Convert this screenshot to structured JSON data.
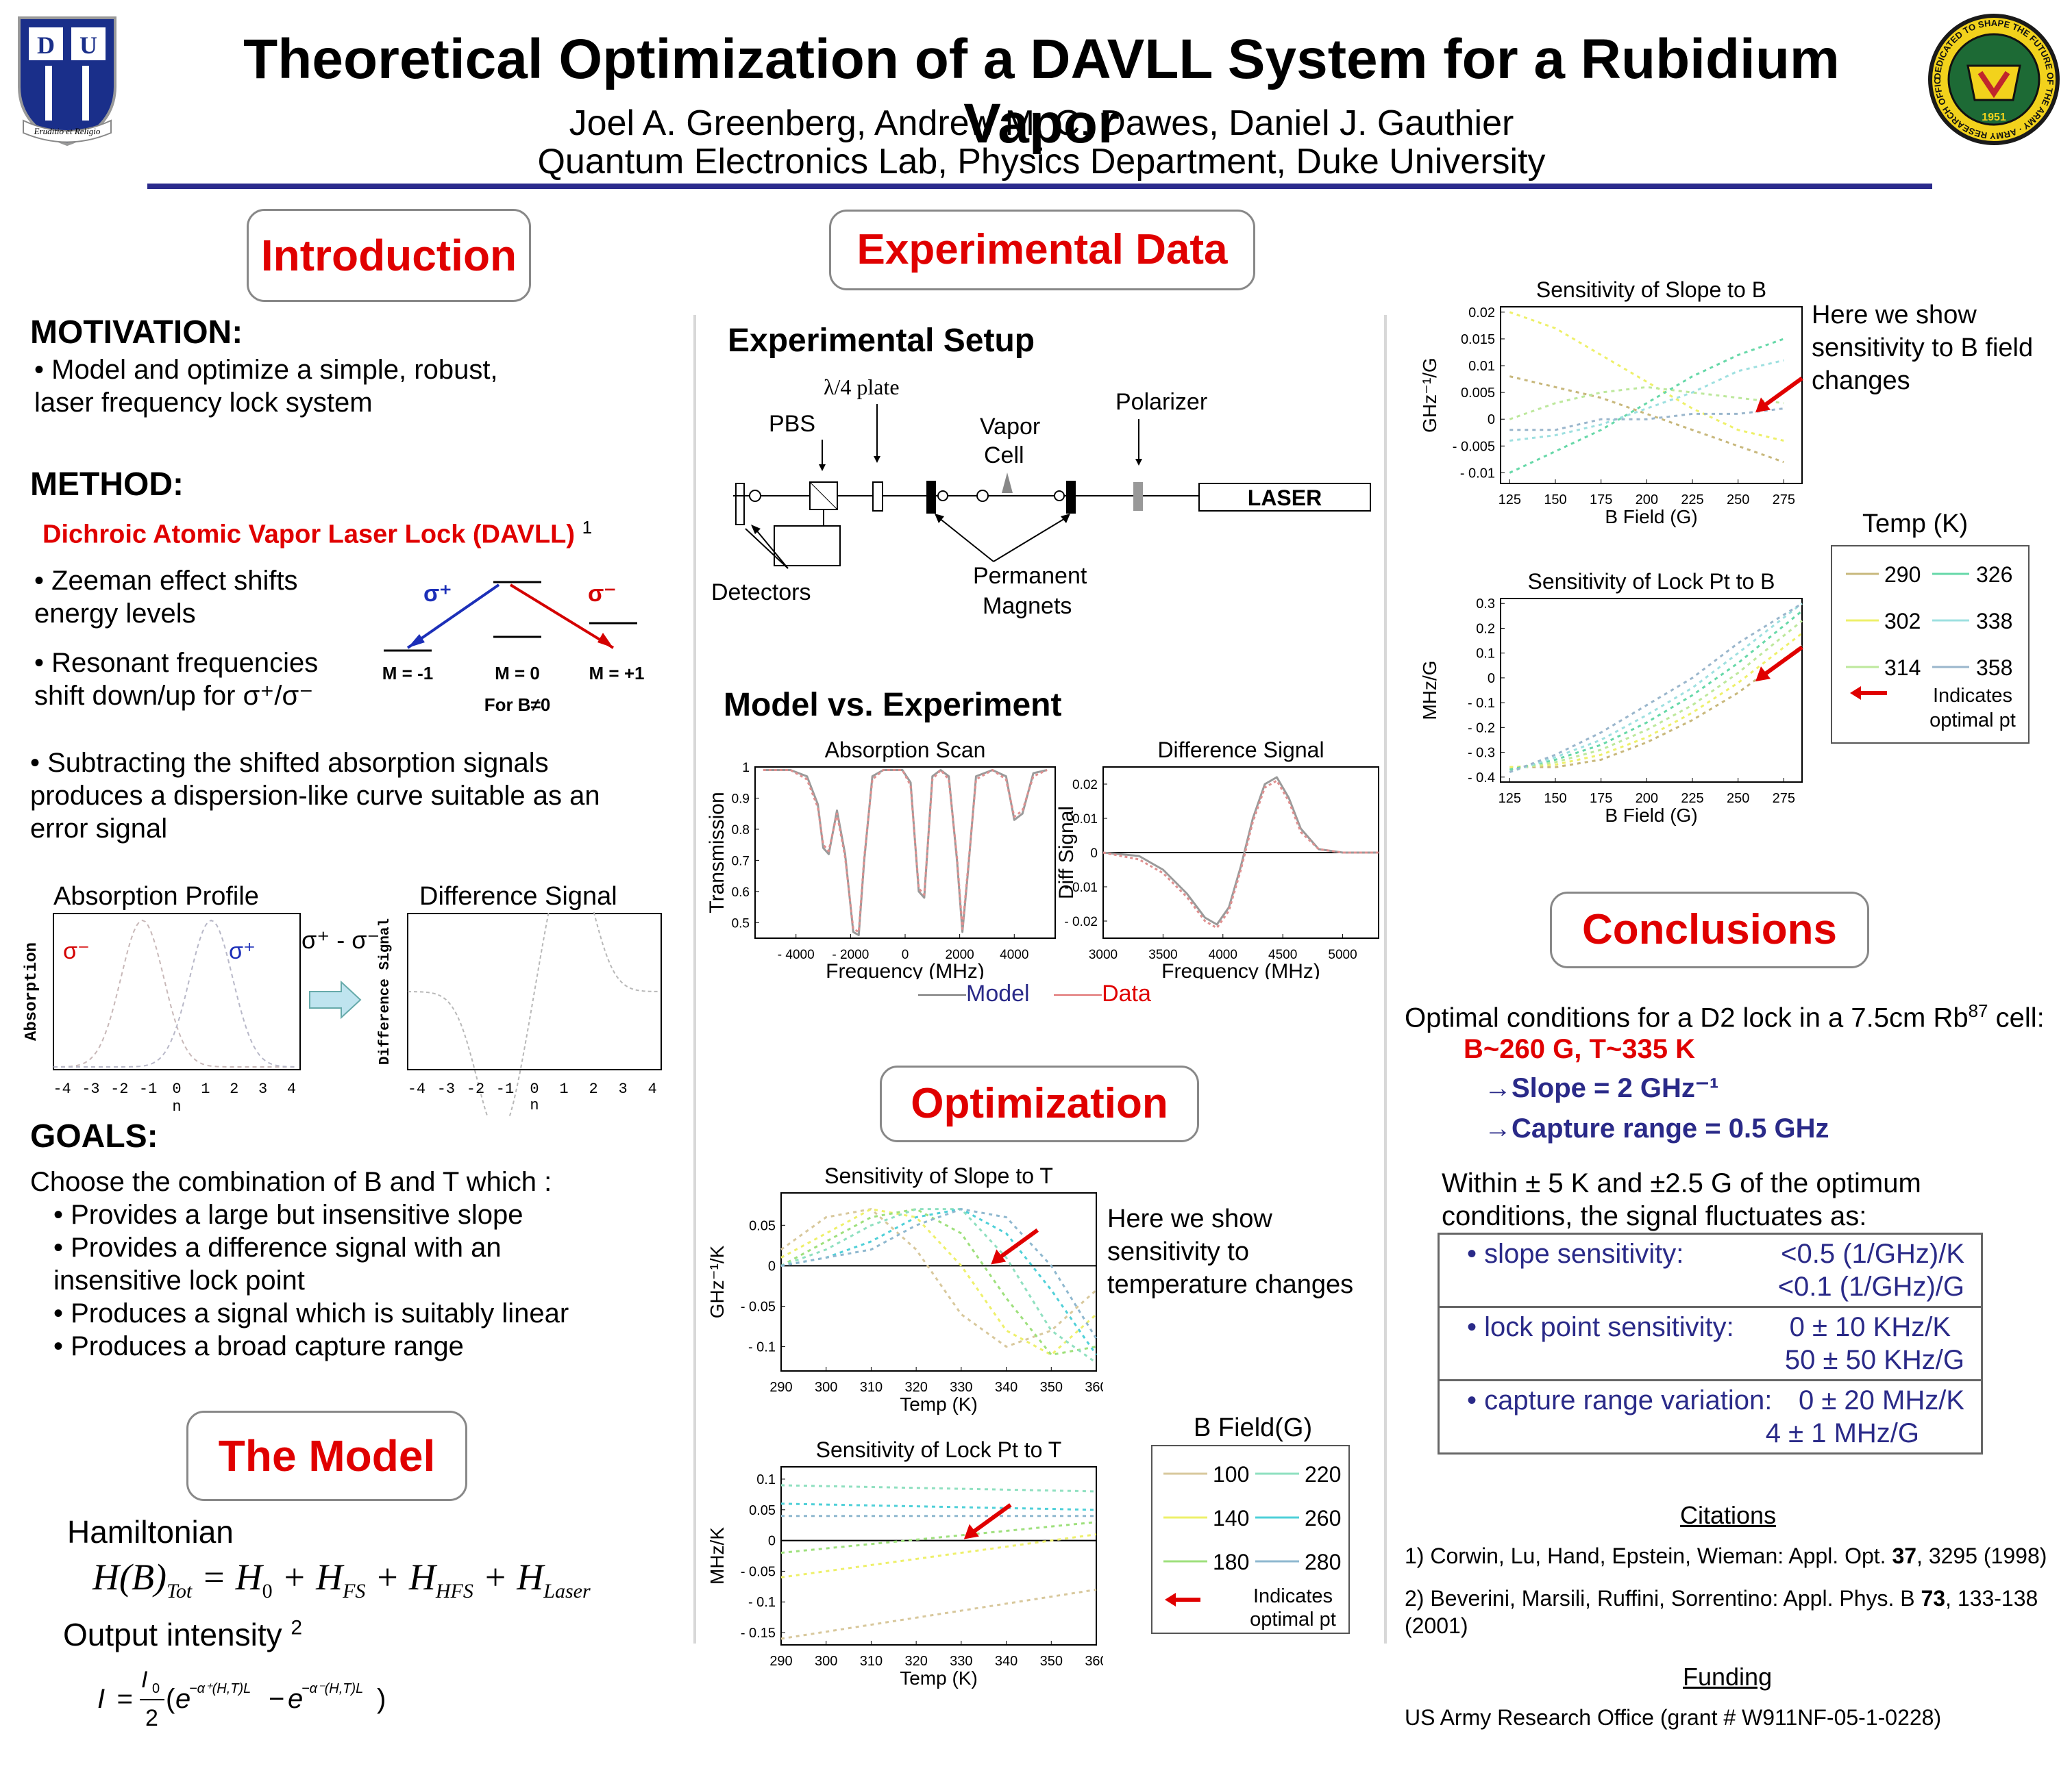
{
  "header": {
    "title": "Theoretical Optimization of a DAVLL System for a Rubidium Vapor",
    "authors": "Joel A. Greenberg, Andrew M. C. Dawes, Daniel J. Gauthier",
    "affiliation": "Quantum Electronics Lab, Physics Department, Duke University",
    "left_logo_motto": "Eruditio et Religio",
    "right_logo_ring": "DEDICATED TO SHAPE THE FUTURE OF THE ARMY · ARMY RESEARCH OFFICE",
    "right_logo_year": "1951"
  },
  "intro": {
    "heading": "Introduction",
    "motivation_title": "MOTIVATION:",
    "motivation_text": "• Model and optimize a simple, robust, laser frequency lock system",
    "method_title": "METHOD:",
    "method_name": "Dichroic Atomic Vapor Laser Lock (DAVLL)",
    "method_ref": "1",
    "bullet_zeeman": "• Zeeman effect shifts energy levels",
    "bullet_resonant": "• Resonant frequencies shift down/up for σ⁺/σ⁻",
    "bullet_subtract": "• Subtracting the shifted absorption signals produces a dispersion-like curve suitable as an error signal",
    "level_diagram": {
      "sigma_plus": "σ⁺",
      "sigma_minus": "σ⁻",
      "m_minus": "M = -1",
      "m_zero": "M = 0",
      "m_plus": "M = +1",
      "condition": "For B≠0"
    },
    "absorption_profile": {
      "title": "Absorption Profile",
      "ylabel": "Absorption",
      "sigma_minus": "σ⁻",
      "sigma_plus": "σ⁺",
      "xticks": [
        "-4",
        "-3",
        "-2",
        "-1",
        "0",
        "1",
        "2",
        "3",
        "4"
      ],
      "xlabel": "n"
    },
    "arrow_label": "σ⁺ - σ⁻",
    "difference_signal": {
      "title": "Difference Signal",
      "ylabel": "Difference Signal",
      "xticks": [
        "-4",
        "-3",
        "-2",
        "-1",
        "0",
        "1",
        "2",
        "3",
        "4"
      ],
      "xlabel": "n"
    },
    "goals_title": "GOALS:",
    "goals_intro": "Choose the combination of B and T which :",
    "goals": [
      "• Provides a large but insensitive slope",
      "• Provides a difference signal with an insensitive lock point",
      "• Produces a signal which is suitably linear",
      "• Produces a broad capture range"
    ]
  },
  "model": {
    "heading": "The Model",
    "hamiltonian_label": "Hamiltonian",
    "output_label": "Output intensity",
    "output_ref": "2"
  },
  "experimental": {
    "heading": "Experimental Data",
    "setup_title": "Experimental Setup",
    "labels": {
      "quarter_wave": "λ/4 plate",
      "pbs": "PBS",
      "vapor_cell": "Vapor Cell",
      "polarizer": "Polarizer",
      "laser": "LASER",
      "detectors": "Detectors",
      "magnets": "Permanent Magnets"
    },
    "model_vs_exp_title": "Model vs. Experiment",
    "legend_model": "Model",
    "legend_data": "Data"
  },
  "optimization": {
    "heading": "Optimization",
    "note_T": "Here we show sensitivity to temperature changes",
    "bfield_legend_title": "B Field(G)",
    "bfield_legend": [
      "100",
      "220",
      "140",
      "260",
      "180",
      "280"
    ],
    "indicates": "Indicates optimal pt"
  },
  "right": {
    "note_B": "Here we show sensitivity to B field changes",
    "temp_legend_title": "Temp (K)",
    "temp_legend": [
      "290",
      "326",
      "302",
      "338",
      "314",
      "358"
    ],
    "indicates": "Indicates optimal pt"
  },
  "conclusions": {
    "heading": "Conclusions",
    "optimal_intro": "Optimal conditions for a D2 lock in a 7.5cm Rb",
    "optimal_sup": "87",
    "optimal_suffix": " cell:",
    "optimal_BT": "B~260 G, T~335 K",
    "slope": "→Slope = 2 GHz⁻¹",
    "capture": "→Capture range = 0.5 GHz",
    "within": "Within ± 5 K and ±2.5 G of the optimum conditions, the signal fluctuates as:",
    "rows": [
      {
        "label": "• slope sensitivity:",
        "v1": "<0.5 (1/GHz)/K",
        "v2": "<0.1 (1/GHz)/G"
      },
      {
        "label": "• lock point sensitivity:",
        "v1": "0 ± 10 KHz/K",
        "v2": "50 ± 50 KHz/G"
      },
      {
        "label": "• capture range variation:",
        "v1": "0 ± 20 MHz/K",
        "v2": "4 ± 1 MHz/G"
      }
    ],
    "citations_title": "Citations",
    "citation1_pre": "1) Corwin, Lu, Hand, Epstein, Wieman: Appl. Opt. ",
    "citation1_vol": "37",
    "citation1_post": ", 3295 (1998)",
    "citation2_pre": "2) Beverini, Marsili, Ruffini, Sorrentino: Appl. Phys. B ",
    "citation2_vol": "73",
    "citation2_post": ", 133-138 (2001)",
    "funding_title": "Funding",
    "funding_text": "US Army Research Office (grant # W911NF-05-1-0228)"
  },
  "chart_data": [
    {
      "id": "absorption_scan",
      "type": "line",
      "title": "Absorption Scan",
      "xlabel": "Frequency (MHz)",
      "ylabel": "Transmission",
      "xlim": [
        -5500,
        5500
      ],
      "ylim": [
        0.45,
        1.0
      ],
      "xticks": [
        -4000,
        -2000,
        0,
        2000,
        4000
      ],
      "yticks": [
        0.5,
        0.6,
        0.7,
        0.8,
        0.9,
        1
      ],
      "series": [
        {
          "name": "Model",
          "x": [
            -5200,
            -4200,
            -3600,
            -3200,
            -3000,
            -2800,
            -2500,
            -2200,
            -1900,
            -1700,
            -1500,
            -1200,
            -800,
            -400,
            -100,
            200,
            500,
            700,
            1000,
            1300,
            1600,
            1900,
            2100,
            2300,
            2600,
            3200,
            3700,
            4000,
            4300,
            4700,
            5200
          ],
          "y": [
            0.99,
            0.99,
            0.97,
            0.88,
            0.74,
            0.72,
            0.86,
            0.72,
            0.47,
            0.46,
            0.7,
            0.97,
            0.99,
            0.99,
            0.99,
            0.95,
            0.6,
            0.58,
            0.97,
            0.99,
            0.97,
            0.7,
            0.47,
            0.66,
            0.97,
            0.99,
            0.97,
            0.83,
            0.85,
            0.98,
            0.99
          ]
        },
        {
          "name": "Data",
          "x": [
            -5200,
            -4200,
            -3600,
            -3200,
            -3000,
            -2800,
            -2500,
            -2200,
            -1900,
            -1700,
            -1500,
            -1200,
            -800,
            -400,
            -100,
            200,
            500,
            700,
            1000,
            1300,
            1600,
            1900,
            2100,
            2300,
            2600,
            3200,
            3700,
            4000,
            4300,
            4700,
            5200
          ],
          "y": [
            0.99,
            0.99,
            0.96,
            0.87,
            0.75,
            0.73,
            0.85,
            0.71,
            0.48,
            0.47,
            0.71,
            0.96,
            0.99,
            0.99,
            0.99,
            0.94,
            0.61,
            0.59,
            0.96,
            0.99,
            0.96,
            0.71,
            0.48,
            0.67,
            0.96,
            0.99,
            0.96,
            0.84,
            0.86,
            0.97,
            0.99
          ]
        }
      ]
    },
    {
      "id": "difference_signal_exp",
      "type": "line",
      "title": "Difference Signal",
      "xlabel": "Frequency (MHz)",
      "ylabel": "Diff Signal",
      "xlim": [
        3000,
        5300
      ],
      "ylim": [
        -0.025,
        0.025
      ],
      "xticks": [
        3000,
        3500,
        4000,
        4500,
        5000
      ],
      "yticks": [
        -0.02,
        -0.01,
        0,
        0.01,
        0.02
      ],
      "series": [
        {
          "name": "Model",
          "x": [
            3000,
            3300,
            3500,
            3700,
            3850,
            3950,
            4050,
            4150,
            4250,
            4350,
            4450,
            4550,
            4650,
            4800,
            5000,
            5300
          ],
          "y": [
            0,
            -0.001,
            -0.005,
            -0.012,
            -0.019,
            -0.021,
            -0.016,
            -0.004,
            0.01,
            0.02,
            0.022,
            0.016,
            0.007,
            0.001,
            0,
            0
          ]
        },
        {
          "name": "Data",
          "x": [
            3000,
            3300,
            3500,
            3700,
            3850,
            3950,
            4050,
            4150,
            4250,
            4350,
            4450,
            4550,
            4650,
            4800,
            5000,
            5300
          ],
          "y": [
            0,
            -0.002,
            -0.006,
            -0.013,
            -0.02,
            -0.022,
            -0.017,
            -0.005,
            0.009,
            0.019,
            0.021,
            0.015,
            0.006,
            0.001,
            0,
            0
          ]
        }
      ]
    },
    {
      "id": "slope_vs_T",
      "type": "line",
      "title": "Sensitivity of Slope to T",
      "xlabel": "Temp (K)",
      "ylabel": "GHz⁻¹/K",
      "xlim": [
        290,
        360
      ],
      "ylim": [
        -0.13,
        0.09
      ],
      "xticks": [
        290,
        300,
        310,
        320,
        330,
        340,
        350,
        360
      ],
      "yticks": [
        0.05,
        0,
        -0.05,
        -0.1
      ],
      "series": [
        {
          "name": "100",
          "x": [
            290,
            300,
            310,
            320,
            330,
            340,
            350,
            360
          ],
          "y": [
            0.02,
            0.06,
            0.07,
            0.02,
            -0.06,
            -0.1,
            -0.08,
            -0.03
          ]
        },
        {
          "name": "140",
          "x": [
            290,
            300,
            310,
            320,
            330,
            340,
            350,
            360
          ],
          "y": [
            0.01,
            0.04,
            0.07,
            0.06,
            0.0,
            -0.08,
            -0.11,
            -0.06
          ]
        },
        {
          "name": "180",
          "x": [
            290,
            300,
            310,
            320,
            330,
            340,
            350,
            360
          ],
          "y": [
            0.0,
            0.03,
            0.06,
            0.07,
            0.04,
            -0.04,
            -0.11,
            -0.1
          ]
        },
        {
          "name": "220",
          "x": [
            290,
            300,
            310,
            320,
            330,
            340,
            350,
            360
          ],
          "y": [
            0.0,
            0.02,
            0.05,
            0.07,
            0.07,
            0.01,
            -0.08,
            -0.12
          ]
        },
        {
          "name": "260",
          "x": [
            290,
            300,
            310,
            320,
            330,
            340,
            350,
            360
          ],
          "y": [
            0.0,
            0.01,
            0.03,
            0.06,
            0.07,
            0.04,
            -0.03,
            -0.11
          ]
        },
        {
          "name": "280",
          "x": [
            290,
            300,
            310,
            320,
            330,
            340,
            350,
            360
          ],
          "y": [
            0.0,
            0.01,
            0.02,
            0.05,
            0.07,
            0.06,
            0.0,
            -0.09
          ]
        }
      ],
      "optimal": {
        "x": 336,
        "y": 0.0
      }
    },
    {
      "id": "lock_vs_T",
      "type": "line",
      "title": "Sensitivity of Lock Pt to T",
      "xlabel": "Temp (K)",
      "ylabel": "MHz/K",
      "xlim": [
        290,
        360
      ],
      "ylim": [
        -0.17,
        0.12
      ],
      "xticks": [
        290,
        300,
        310,
        320,
        330,
        340,
        350,
        360
      ],
      "yticks": [
        0.1,
        0.05,
        0,
        -0.05,
        -0.1,
        -0.15
      ],
      "series": [
        {
          "name": "100",
          "x": [
            290,
            360
          ],
          "y": [
            -0.16,
            -0.08
          ]
        },
        {
          "name": "140",
          "x": [
            290,
            360
          ],
          "y": [
            -0.06,
            0.01
          ]
        },
        {
          "name": "180",
          "x": [
            290,
            360
          ],
          "y": [
            -0.02,
            0.03
          ]
        },
        {
          "name": "220",
          "x": [
            290,
            360
          ],
          "y": [
            0.09,
            0.08
          ]
        },
        {
          "name": "260",
          "x": [
            290,
            360
          ],
          "y": [
            0.06,
            0.05
          ]
        },
        {
          "name": "280",
          "x": [
            290,
            360
          ],
          "y": [
            0.04,
            0.04
          ]
        }
      ],
      "optimal": {
        "x": 330,
        "y": 0.0
      }
    },
    {
      "id": "slope_vs_B",
      "type": "line",
      "title": "Sensitivity of Slope to B",
      "xlabel": "B Field (G)",
      "ylabel": "GHz⁻¹/G",
      "xlim": [
        120,
        285
      ],
      "ylim": [
        -0.012,
        0.021
      ],
      "xticks": [
        125,
        150,
        175,
        200,
        225,
        250,
        275
      ],
      "yticks": [
        0.02,
        0.015,
        0.01,
        0.005,
        0,
        -0.005,
        -0.01
      ],
      "series": [
        {
          "name": "290",
          "x": [
            125,
            150,
            175,
            200,
            225,
            250,
            275
          ],
          "y": [
            0.008,
            0.006,
            0.004,
            0.001,
            -0.002,
            -0.005,
            -0.008
          ]
        },
        {
          "name": "302",
          "x": [
            125,
            150,
            175,
            200,
            225,
            250,
            275
          ],
          "y": [
            0.02,
            0.017,
            0.012,
            0.007,
            0.002,
            -0.002,
            -0.004
          ]
        },
        {
          "name": "314",
          "x": [
            125,
            150,
            175,
            200,
            225,
            250,
            275
          ],
          "y": [
            0.0,
            0.003,
            0.005,
            0.006,
            0.005,
            0.004,
            0.003
          ]
        },
        {
          "name": "326",
          "x": [
            125,
            150,
            175,
            200,
            225,
            250,
            275
          ],
          "y": [
            -0.01,
            -0.006,
            -0.002,
            0.003,
            0.008,
            0.012,
            0.015
          ]
        },
        {
          "name": "338",
          "x": [
            125,
            150,
            175,
            200,
            225,
            250,
            275
          ],
          "y": [
            -0.004,
            -0.003,
            -0.001,
            0.002,
            0.005,
            0.009,
            0.011
          ]
        },
        {
          "name": "358",
          "x": [
            125,
            150,
            175,
            200,
            225,
            250,
            275
          ],
          "y": [
            -0.002,
            -0.002,
            0.0,
            0.0,
            0.001,
            0.001,
            0.002
          ]
        }
      ],
      "optimal": {
        "x": 258,
        "y": 0.001
      }
    },
    {
      "id": "lock_vs_B",
      "type": "line",
      "title": "Sensitivity of Lock Pt to B",
      "xlabel": "B Field (G)",
      "ylabel": "MHz/G",
      "xlim": [
        120,
        285
      ],
      "ylim": [
        -0.42,
        0.32
      ],
      "xticks": [
        125,
        150,
        175,
        200,
        225,
        250,
        275
      ],
      "yticks": [
        0.3,
        0.2,
        0.1,
        0,
        -0.1,
        -0.2,
        -0.3,
        -0.4
      ],
      "series": [
        {
          "name": "290",
          "x": [
            125,
            150,
            175,
            200,
            225,
            250,
            285
          ],
          "y": [
            -0.36,
            -0.36,
            -0.33,
            -0.26,
            -0.17,
            -0.06,
            0.13
          ]
        },
        {
          "name": "302",
          "x": [
            125,
            150,
            175,
            200,
            225,
            250,
            285
          ],
          "y": [
            -0.36,
            -0.35,
            -0.31,
            -0.24,
            -0.14,
            -0.02,
            0.18
          ]
        },
        {
          "name": "314",
          "x": [
            125,
            150,
            175,
            200,
            225,
            250,
            285
          ],
          "y": [
            -0.37,
            -0.34,
            -0.29,
            -0.21,
            -0.11,
            0.02,
            0.23
          ]
        },
        {
          "name": "326",
          "x": [
            125,
            150,
            175,
            200,
            225,
            250,
            285
          ],
          "y": [
            -0.37,
            -0.33,
            -0.27,
            -0.18,
            -0.07,
            0.06,
            0.27
          ]
        },
        {
          "name": "338",
          "x": [
            125,
            150,
            175,
            200,
            225,
            250,
            285
          ],
          "y": [
            -0.38,
            -0.32,
            -0.25,
            -0.15,
            -0.04,
            0.1,
            0.3
          ]
        },
        {
          "name": "358",
          "x": [
            125,
            150,
            175,
            200,
            225,
            250,
            285
          ],
          "y": [
            -0.38,
            -0.31,
            -0.22,
            -0.11,
            0.0,
            0.14,
            0.3
          ]
        }
      ],
      "optimal": {
        "x": 258,
        "y": -0.02
      }
    }
  ]
}
